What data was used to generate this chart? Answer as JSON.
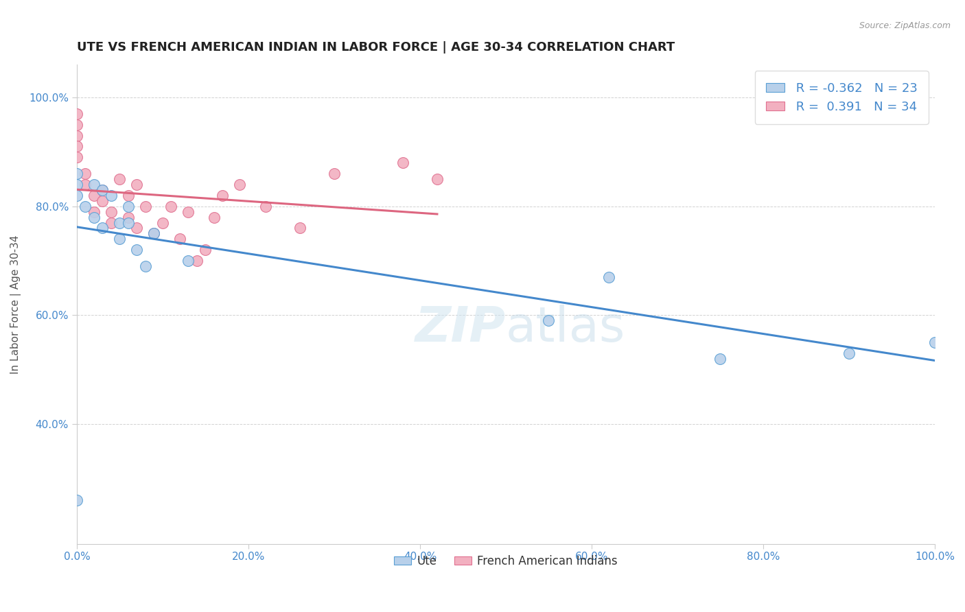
{
  "title": "UTE VS FRENCH AMERICAN INDIAN IN LABOR FORCE | AGE 30-34 CORRELATION CHART",
  "source": "Source: ZipAtlas.com",
  "xlabel": "",
  "ylabel": "In Labor Force | Age 30-34",
  "legend_label_ute": "Ute",
  "legend_label_fai": "French American Indians",
  "r_ute": -0.362,
  "n_ute": 23,
  "r_fai": 0.391,
  "n_fai": 34,
  "ute_color": "#b8d0ea",
  "fai_color": "#f2b0c0",
  "ute_edge_color": "#5a9fd4",
  "fai_edge_color": "#e07090",
  "ute_line_color": "#4488cc",
  "fai_line_color": "#dd6680",
  "watermark_color": "#d0e4f0",
  "ute_x": [
    0.0,
    0.0,
    0.0,
    0.0,
    0.01,
    0.02,
    0.02,
    0.03,
    0.03,
    0.04,
    0.05,
    0.05,
    0.06,
    0.06,
    0.07,
    0.08,
    0.09,
    0.13,
    0.55,
    0.62,
    0.75,
    0.9,
    1.0
  ],
  "ute_y": [
    0.26,
    0.82,
    0.84,
    0.86,
    0.8,
    0.78,
    0.84,
    0.76,
    0.83,
    0.82,
    0.74,
    0.77,
    0.77,
    0.8,
    0.72,
    0.69,
    0.75,
    0.7,
    0.59,
    0.67,
    0.52,
    0.53,
    0.55
  ],
  "fai_x": [
    0.0,
    0.0,
    0.0,
    0.0,
    0.0,
    0.01,
    0.01,
    0.02,
    0.02,
    0.03,
    0.03,
    0.04,
    0.04,
    0.05,
    0.06,
    0.06,
    0.07,
    0.07,
    0.08,
    0.09,
    0.1,
    0.11,
    0.12,
    0.13,
    0.14,
    0.15,
    0.16,
    0.17,
    0.19,
    0.22,
    0.26,
    0.3,
    0.38,
    0.42
  ],
  "fai_y": [
    0.97,
    0.95,
    0.93,
    0.91,
    0.89,
    0.86,
    0.84,
    0.82,
    0.79,
    0.83,
    0.81,
    0.79,
    0.77,
    0.85,
    0.82,
    0.78,
    0.76,
    0.84,
    0.8,
    0.75,
    0.77,
    0.8,
    0.74,
    0.79,
    0.7,
    0.72,
    0.78,
    0.82,
    0.84,
    0.8,
    0.76,
    0.86,
    0.88,
    0.85
  ],
  "xlim": [
    0.0,
    1.0
  ],
  "ylim": [
    0.18,
    1.06
  ],
  "yticks": [
    0.4,
    0.6,
    0.8,
    1.0
  ],
  "ytick_labels": [
    "40.0%",
    "60.0%",
    "80.0%",
    "100.0%"
  ],
  "xtick_labels": [
    "0.0%",
    "20.0%",
    "40.0%",
    "60.0%",
    "80.0%",
    "100.0%"
  ],
  "xticks": [
    0.0,
    0.2,
    0.4,
    0.6,
    0.8,
    1.0
  ],
  "title_fontsize": 13,
  "axis_fontsize": 11,
  "tick_fontsize": 11,
  "legend_fontsize": 13
}
